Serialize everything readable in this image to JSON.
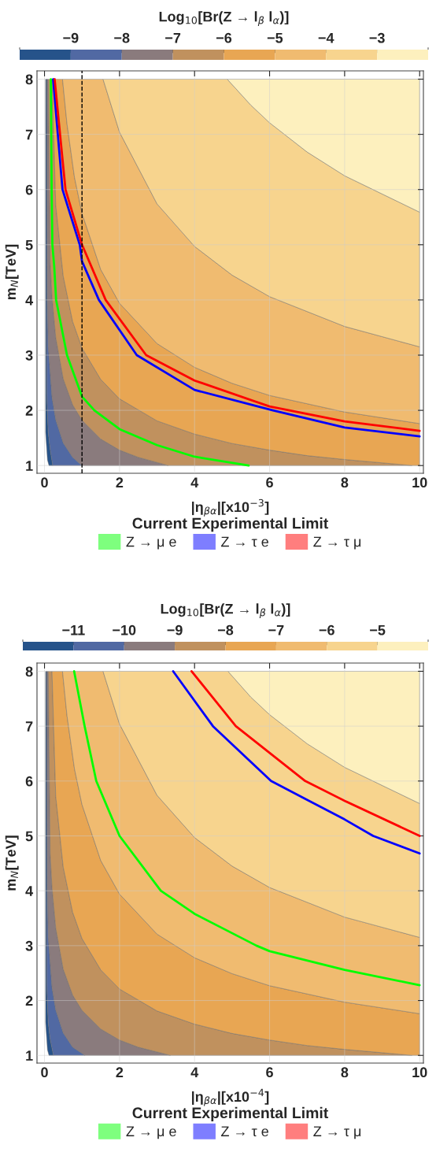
{
  "chart_data": [
    {
      "type": "line",
      "clabel": "Log$_{10}$[Br(Z → l$_{β}$ l$_{α}$)]",
      "clim": [
        -10,
        -2
      ],
      "cticks": [
        -9,
        -8,
        -7,
        -6,
        -5,
        -4,
        -3
      ],
      "xlabel": "|η$_{βα}$|[x10$^{−3}$]",
      "ylabel": "m$_{N}$[TeV]",
      "legend_title": "Current Experimental Limit",
      "legend": "bottom",
      "grid": true,
      "xlim": [
        -0.2,
        10.1
      ],
      "ylim": [
        0.86,
        8.15
      ],
      "xticks": [
        0,
        2,
        4,
        6,
        8,
        10
      ],
      "yticks": [
        1,
        2,
        3,
        4,
        5,
        6,
        7,
        8
      ],
      "ref_lines": [
        {
          "axis": "x",
          "value": 1,
          "color": "#000000",
          "line_style": "dashed"
        }
      ],
      "series": [
        {
          "type": "area",
          "color": "#26538a",
          "x": [
            0.03,
            0.03,
            0.08,
            0.12,
            0.22,
            0.15,
            0.1,
            0.06,
            0.05
          ],
          "values": [
            8,
            1.6,
            1.1,
            1.0,
            1.0,
            1.3,
            1.6,
            2.3,
            8
          ]
        },
        {
          "type": "area",
          "color": "#5169a3",
          "x": [
            0.05,
            0.06,
            0.1,
            0.15,
            0.22,
            1.0,
            0.75,
            0.5,
            0.3,
            0.2,
            0.1,
            0.08,
            0.07
          ],
          "values": [
            8,
            2.3,
            1.6,
            1.3,
            1.0,
            1.0,
            1.15,
            1.41,
            1.83,
            2.24,
            3.16,
            4,
            8
          ]
        },
        {
          "type": "area",
          "color": "#8a7b7d",
          "x": [
            0.07,
            0.08,
            0.1,
            0.2,
            0.3,
            0.5,
            0.75,
            1.0,
            3.3,
            2.5,
            2,
            1.5,
            1,
            0.75,
            0.5,
            0.3,
            0.2,
            0.15,
            0.1
          ],
          "values": [
            8,
            4,
            3.16,
            2.24,
            1.83,
            1.41,
            1.15,
            1.0,
            1.0,
            1.15,
            1.28,
            1.48,
            1.82,
            2.1,
            2.57,
            3.32,
            4.06,
            4.69,
            8
          ]
        },
        {
          "type": "area",
          "color": "#c0915e",
          "x": [
            0.1,
            0.15,
            0.2,
            0.3,
            0.5,
            0.75,
            1,
            1.5,
            2,
            2.5,
            3.3,
            9.8,
            8,
            7,
            6,
            5,
            4,
            3,
            2,
            1.5,
            1,
            0.75,
            0.5,
            0.3,
            0.2
          ],
          "values": [
            8,
            4.69,
            4.06,
            3.32,
            2.57,
            2.1,
            1.82,
            1.48,
            1.28,
            1.15,
            1.0,
            1.0,
            1.11,
            1.18,
            1.28,
            1.4,
            1.57,
            1.81,
            2.21,
            2.56,
            3.13,
            3.61,
            4.43,
            5.72,
            8
          ]
        },
        {
          "type": "area",
          "color": "#e8a653",
          "x": [
            0.2,
            0.3,
            0.5,
            0.75,
            1,
            1.5,
            2,
            3,
            4,
            5,
            6,
            7,
            8,
            9.8,
            10,
            10,
            8,
            6,
            5,
            4,
            3,
            2,
            1.5,
            1,
            0.8,
            0.6,
            0.48
          ],
          "values": [
            8,
            5.72,
            4.43,
            3.61,
            3.13,
            2.56,
            2.21,
            1.81,
            1.57,
            1.4,
            1.28,
            1.18,
            1.11,
            1.0,
            1.0,
            1.76,
            1.97,
            2.27,
            2.49,
            2.78,
            3.21,
            3.94,
            4.55,
            5.57,
            6.22,
            7.19,
            8
          ]
        },
        {
          "type": "area",
          "color": "#f0bb70",
          "x": [
            0.48,
            0.6,
            0.8,
            1,
            1.5,
            2,
            3,
            4,
            5,
            6,
            8,
            10,
            10,
            8,
            6,
            5,
            4,
            3,
            2,
            1.56
          ],
          "values": [
            8,
            7.19,
            6.22,
            5.57,
            4.55,
            3.94,
            3.21,
            2.78,
            2.49,
            2.27,
            1.97,
            1.76,
            3.15,
            3.52,
            4.06,
            4.45,
            4.97,
            5.74,
            7.04,
            8
          ]
        },
        {
          "type": "area",
          "color": "#f7d48e",
          "x": [
            1.56,
            2,
            3,
            4,
            5,
            6,
            8,
            10,
            10,
            8,
            7,
            6,
            5.5,
            4.87
          ],
          "values": [
            8,
            7.04,
            5.74,
            4.97,
            4.45,
            4.06,
            3.52,
            3.15,
            5.59,
            6.25,
            6.68,
            7.21,
            7.53,
            8
          ]
        },
        {
          "type": "area",
          "color": "#fdf0be",
          "x": [
            4.87,
            5.5,
            6,
            7,
            8,
            10,
            10
          ],
          "values": [
            8,
            7.53,
            7.21,
            6.68,
            6.25,
            5.59,
            8
          ]
        },
        {
          "name": "Z → μ e",
          "color": "#00ff00",
          "x": [
            0.17,
            0.19,
            0.21,
            0.26,
            0.31,
            0.6,
            1.0,
            1.33,
            2,
            3,
            4,
            5.44
          ],
          "values": [
            8,
            6,
            5,
            4.6,
            4,
            3,
            2.25,
            2.0,
            1.66,
            1.37,
            1.16,
            1.0
          ]
        },
        {
          "name": "Z → τ e",
          "color": "#0000ff",
          "x": [
            0.23,
            0.48,
            0.94,
            1.0,
            1.45,
            2.46,
            4,
            6.09,
            8,
            10
          ],
          "values": [
            8,
            6,
            5,
            4.7,
            4,
            3,
            2.37,
            2.0,
            1.69,
            1.53
          ]
        },
        {
          "name": "Z → τ μ",
          "color": "#ff0000",
          "x": [
            0.27,
            0.56,
            1.0,
            1.63,
            2.71,
            4,
            6,
            8,
            10
          ],
          "values": [
            8,
            6,
            5.0,
            4,
            3,
            2.54,
            2.07,
            1.8,
            1.63
          ]
        }
      ]
    },
    {
      "type": "line",
      "clabel": "Log$_{10}$[Br(Z → l$_{β}$ l$_{α}$)]",
      "clim": [
        -12,
        -4
      ],
      "cticks": [
        -11,
        -10,
        -9,
        -8,
        -7,
        -6,
        -5
      ],
      "xlabel": "|η$_{βα}$|[x10$^{−4}$]",
      "ylabel": "m$_{N}$[TeV]",
      "legend_title": "Current Experimental Limit",
      "legend": "bottom",
      "grid": true,
      "xlim": [
        -0.2,
        10.1
      ],
      "ylim": [
        0.86,
        8.15
      ],
      "xticks": [
        0,
        2,
        4,
        6,
        8,
        10
      ],
      "yticks": [
        1,
        2,
        3,
        4,
        5,
        6,
        7,
        8
      ],
      "series": [
        {
          "type": "area",
          "color": "#26538a",
          "x": [
            0.03,
            0.03,
            0.08,
            0.12,
            0.24,
            0.15,
            0.1,
            0.06,
            0.05
          ],
          "values": [
            8,
            1.6,
            1.1,
            1.0,
            1.0,
            1.3,
            1.6,
            2.3,
            8
          ]
        },
        {
          "type": "area",
          "color": "#5169a3",
          "x": [
            0.05,
            0.06,
            0.1,
            0.15,
            0.24,
            1.08,
            0.75,
            0.5,
            0.3,
            0.2,
            0.1,
            0.08,
            0.07
          ],
          "values": [
            8,
            2.3,
            1.6,
            1.3,
            1.0,
            1.0,
            1.15,
            1.41,
            1.83,
            2.24,
            3.16,
            4,
            8
          ]
        },
        {
          "type": "area",
          "color": "#8a7b7d",
          "x": [
            0.07,
            0.08,
            0.1,
            0.2,
            0.3,
            0.5,
            0.75,
            1.08,
            3.36,
            2.5,
            2,
            1.5,
            1,
            0.75,
            0.5,
            0.3,
            0.2,
            0.15,
            0.1
          ],
          "values": [
            8,
            4,
            3.16,
            2.24,
            1.83,
            1.41,
            1.15,
            1.0,
            1.0,
            1.15,
            1.28,
            1.48,
            1.82,
            2.1,
            2.57,
            3.32,
            4.06,
            4.69,
            8
          ]
        },
        {
          "type": "area",
          "color": "#c0915e",
          "x": [
            0.1,
            0.15,
            0.2,
            0.3,
            0.5,
            0.75,
            1,
            1.5,
            2,
            2.5,
            3.36,
            9.8,
            8,
            7,
            6,
            5,
            4,
            3,
            2,
            1.5,
            1,
            0.75,
            0.5,
            0.3,
            0.2
          ],
          "values": [
            8,
            4.69,
            4.06,
            3.32,
            2.57,
            2.1,
            1.82,
            1.48,
            1.28,
            1.15,
            1.0,
            1.0,
            1.11,
            1.18,
            1.28,
            1.4,
            1.57,
            1.81,
            2.21,
            2.56,
            3.13,
            3.61,
            4.43,
            5.72,
            8
          ]
        },
        {
          "type": "area",
          "color": "#e8a653",
          "x": [
            0.2,
            0.3,
            0.5,
            0.75,
            1,
            1.5,
            2,
            3,
            4,
            5,
            6,
            7,
            8,
            9.8,
            10,
            10,
            8,
            6,
            5,
            4,
            3,
            2,
            1.5,
            1,
            0.8,
            0.6,
            0.48
          ],
          "values": [
            8,
            5.72,
            4.43,
            3.61,
            3.13,
            2.56,
            2.21,
            1.81,
            1.57,
            1.4,
            1.28,
            1.18,
            1.11,
            1.0,
            1.0,
            1.76,
            1.97,
            2.27,
            2.49,
            2.78,
            3.21,
            3.94,
            4.55,
            5.57,
            6.22,
            7.19,
            8
          ]
        },
        {
          "type": "area",
          "color": "#f0bb70",
          "x": [
            0.48,
            0.6,
            0.8,
            1,
            1.5,
            2,
            3,
            4,
            5,
            6,
            8,
            10,
            10,
            8,
            6,
            5,
            4,
            3,
            2,
            1.56
          ],
          "values": [
            8,
            7.19,
            6.22,
            5.57,
            4.55,
            3.94,
            3.21,
            2.78,
            2.49,
            2.27,
            1.97,
            1.76,
            3.15,
            3.52,
            4.06,
            4.45,
            4.97,
            5.74,
            7.04,
            8
          ]
        },
        {
          "type": "area",
          "color": "#f7d48e",
          "x": [
            1.56,
            2,
            3,
            4,
            5,
            6,
            8,
            10,
            10,
            8,
            7,
            6,
            5.5,
            4.89
          ],
          "values": [
            8,
            7.04,
            5.74,
            4.97,
            4.45,
            4.06,
            3.52,
            3.15,
            5.59,
            6.25,
            6.68,
            7.21,
            7.53,
            8
          ]
        },
        {
          "type": "area",
          "color": "#fdf0be",
          "x": [
            4.89,
            5.5,
            6,
            7,
            8,
            10,
            10
          ],
          "values": [
            8,
            7.53,
            7.21,
            6.68,
            6.25,
            5.59,
            8
          ]
        },
        {
          "name": "Z → μ e",
          "color": "#00ff00",
          "x": [
            0.79,
            1.07,
            1.38,
            2.0,
            3.1,
            4,
            5.65,
            6,
            8,
            10
          ],
          "values": [
            8,
            7,
            6,
            5,
            4,
            3.58,
            3,
            2.9,
            2.56,
            2.28
          ]
        },
        {
          "name": "Z → τ e",
          "color": "#0000ff",
          "x": [
            3.43,
            4.49,
            6.04,
            8,
            8.76,
            10
          ],
          "values": [
            8,
            7,
            6,
            5.3,
            5,
            4.68
          ]
        },
        {
          "name": "Z → τ μ",
          "color": "#ff0000",
          "x": [
            3.92,
            5.1,
            6.95,
            8,
            10
          ],
          "values": [
            8,
            7,
            6,
            5.64,
            5.0
          ]
        }
      ]
    }
  ]
}
